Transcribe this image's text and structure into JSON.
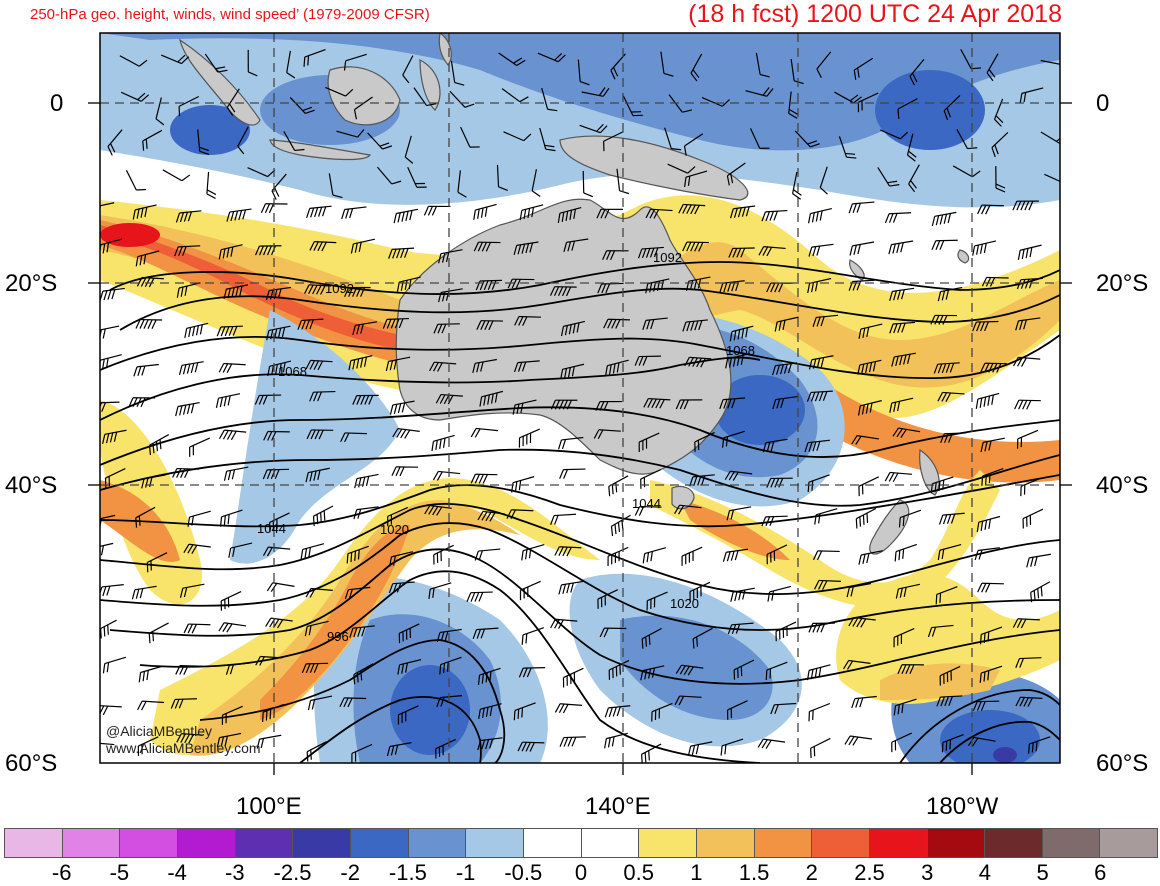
{
  "title": {
    "left": "250-hPa geo. height, winds, wind speed’ (1979-2009 CFSR)",
    "right": "(18 h fcst) 1200 UTC 24 Apr 2018"
  },
  "axes": {
    "lat_labels": [
      "0",
      "20°S",
      "40°S",
      "60°S"
    ],
    "lon_labels": [
      "100°E",
      "140°E",
      "180°W"
    ]
  },
  "contour_labels": [
    "1092",
    "1092",
    "1068",
    "1068",
    "1044",
    "1044",
    "1020",
    "1020",
    "996"
  ],
  "credit": {
    "handle": "@AliciaMBentley",
    "website": "www.AliciaMBentley.com"
  },
  "colorbar": {
    "labels": [
      "-6",
      "-5",
      "-4",
      "-3",
      "-2.5",
      "-2",
      "-1.5",
      "-1",
      "-0.5",
      "0",
      "0.5",
      "1",
      "1.5",
      "2",
      "2.5",
      "3",
      "4",
      "5",
      "6"
    ],
    "colors": [
      "#e9b7e6",
      "#e183e6",
      "#d24fe1",
      "#b21bcf",
      "#5e2fb0",
      "#3a3aa6",
      "#3a68c2",
      "#6892d0",
      "#a5c8e6",
      "#ffffff",
      "#ffffff",
      "#f8e46b",
      "#f3c15a",
      "#f19342",
      "#ee5e37",
      "#e8141b",
      "#a50a10",
      "#6d2a2a",
      "#7f6b6b",
      "#a89b9b"
    ]
  },
  "colors": {
    "title": "#e8141b",
    "land": "#c9c9c9",
    "contour": "#000000"
  }
}
